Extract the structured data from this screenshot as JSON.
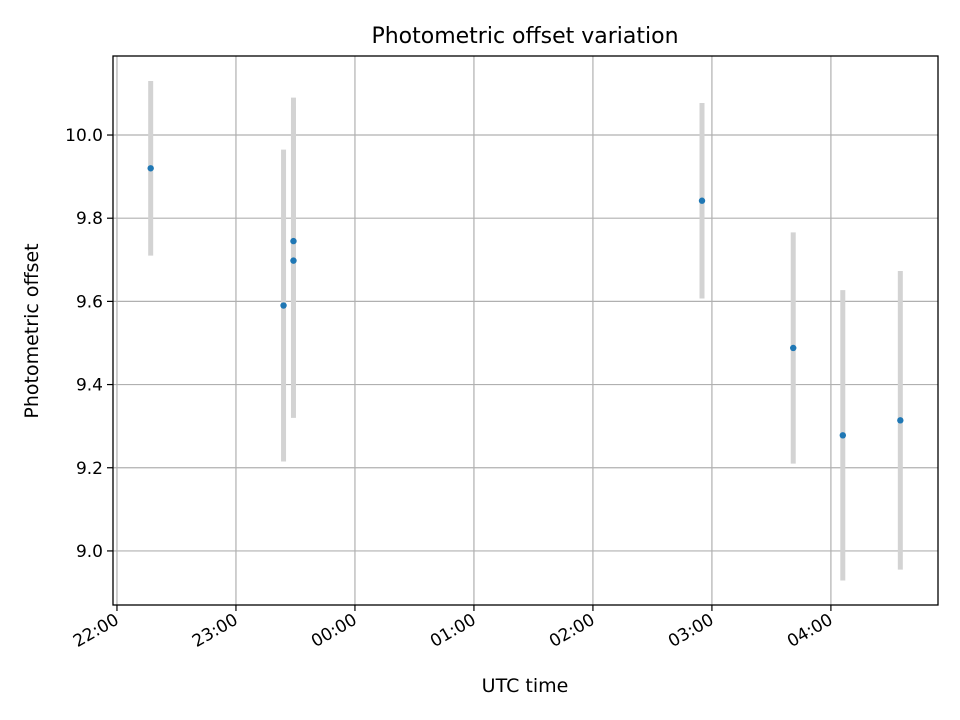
{
  "chart_data": {
    "type": "scatter",
    "title": "Photometric offset variation",
    "xlabel": "UTC time",
    "ylabel": "Photometric offset",
    "x_tick_labels": [
      "22:00",
      "23:00",
      "00:00",
      "01:00",
      "02:00",
      "03:00",
      "04:00"
    ],
    "y_tick_labels": [
      "9.0",
      "9.2",
      "9.4",
      "9.6",
      "9.8",
      "10.0"
    ],
    "x_ticks": [
      "22:00",
      "23:00",
      "00:00",
      "01:00",
      "02:00",
      "03:00",
      "04:00"
    ],
    "y_ticks": [
      9.0,
      9.2,
      9.4,
      9.6,
      9.8,
      10.0
    ],
    "xlim": [
      "21:58",
      "04:54"
    ],
    "ylim": [
      8.87,
      10.19
    ],
    "grid": true,
    "points": [
      {
        "x": "22:17",
        "y": 9.92,
        "ylow": 9.71,
        "yhigh": 10.13
      },
      {
        "x": "23:24",
        "y": 9.59,
        "ylow": 9.215,
        "yhigh": 9.965
      },
      {
        "x": "23:29",
        "y": 9.745,
        "ylow": 9.4,
        "yhigh": 10.09
      },
      {
        "x": "23:29",
        "y": 9.698,
        "ylow": 9.32,
        "yhigh": 10.07
      },
      {
        "x": "02:55",
        "y": 9.842,
        "ylow": 9.607,
        "yhigh": 10.077
      },
      {
        "x": "03:41",
        "y": 9.488,
        "ylow": 9.21,
        "yhigh": 9.766
      },
      {
        "x": "04:06",
        "y": 9.278,
        "ylow": 8.929,
        "yhigh": 9.627
      },
      {
        "x": "04:35",
        "y": 9.314,
        "ylow": 8.955,
        "yhigh": 9.673
      }
    ],
    "colors": {
      "points": "#1f77b4",
      "errorbars": "#d3d3d3",
      "grid": "#b0b0b0"
    }
  }
}
